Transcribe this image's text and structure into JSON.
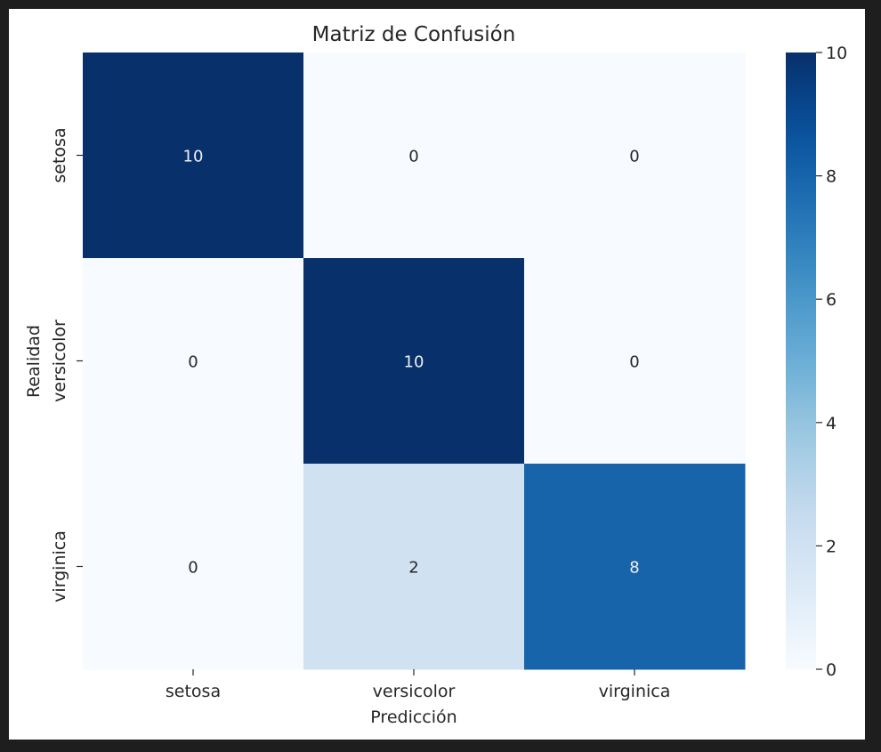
{
  "colors": {
    "page_background": "#1e1e1e",
    "figure_background": "#ffffff",
    "text": "#262626",
    "light_annotation": "#f0f0f0",
    "dark_annotation": "#262626"
  },
  "colormap": "Blues",
  "chart_data": {
    "type": "heatmap",
    "title": "Matriz de Confusión",
    "xlabel": "Predicción",
    "ylabel": "Realidad",
    "x_categories": [
      "setosa",
      "versicolor",
      "virginica"
    ],
    "y_categories": [
      "setosa",
      "versicolor",
      "virginica"
    ],
    "values": [
      [
        10,
        0,
        0
      ],
      [
        0,
        10,
        0
      ],
      [
        0,
        2,
        8
      ]
    ],
    "vmin": 0,
    "vmax": 10,
    "annotations": true,
    "colorbar": {
      "ticks": [
        0,
        2,
        4,
        6,
        8,
        10
      ],
      "tick_labels": [
        "0",
        "2",
        "4",
        "6",
        "8",
        "10"
      ]
    },
    "grid": false,
    "legend": "colorbar-right"
  }
}
